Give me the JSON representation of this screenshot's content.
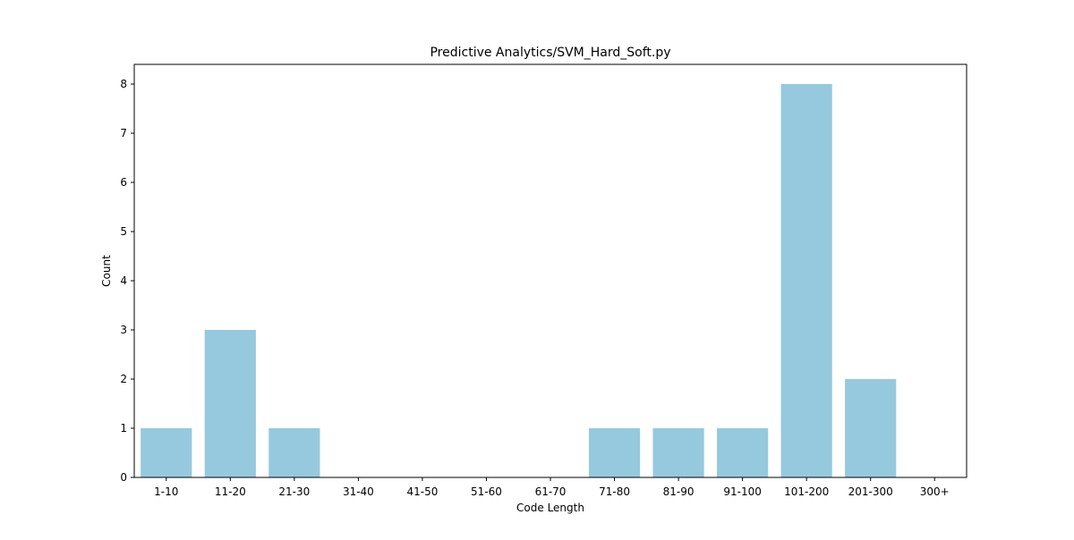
{
  "chart_data": {
    "type": "bar",
    "title": "Predictive Analytics/SVM_Hard_Soft.py",
    "xlabel": "Code Length",
    "ylabel": "Count",
    "categories": [
      "1-10",
      "11-20",
      "21-30",
      "31-40",
      "41-50",
      "51-60",
      "61-70",
      "71-80",
      "81-90",
      "91-100",
      "101-200",
      "201-300",
      "300+"
    ],
    "values": [
      1,
      3,
      1,
      0,
      0,
      0,
      0,
      1,
      1,
      1,
      8,
      2,
      0
    ],
    "ylim": [
      0,
      8.4
    ],
    "yticks": [
      0,
      1,
      2,
      3,
      4,
      5,
      6,
      7,
      8
    ],
    "grid": false,
    "legend": "none",
    "bar_color": "#96c9de"
  }
}
